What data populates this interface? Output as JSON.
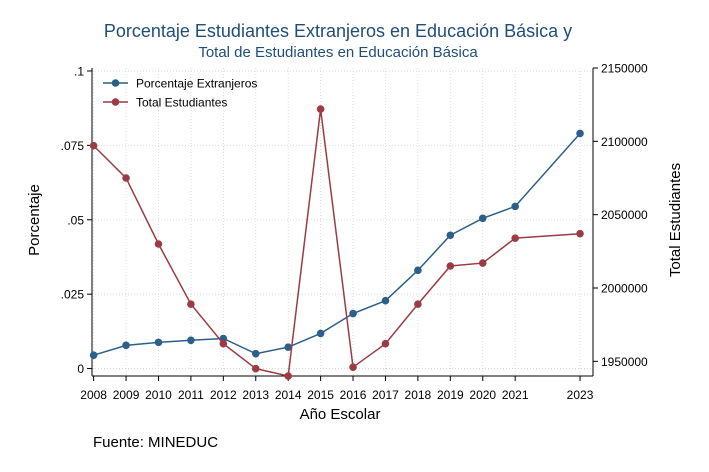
{
  "chart_data": {
    "type": "line",
    "title": "Porcentaje Estudiantes Extranjeros en Educación Básica y",
    "subtitle": "Total de Estudiantes en Educación Básica",
    "xlabel": "Año Escolar",
    "ylabel": "Porcentaje",
    "y2label": "Total Estudiantes",
    "source": "Fuente: MINEDUC",
    "x": [
      2008,
      2009,
      2010,
      2011,
      2012,
      2013,
      2014,
      2015,
      2016,
      2017,
      2018,
      2019,
      2020,
      2021,
      2023
    ],
    "xlim": [
      2007.95,
      2023.4
    ],
    "ylim": [
      -0.0025,
      0.101
    ],
    "y2lim": [
      1940000,
      2150000
    ],
    "yticks": [
      {
        "value": 0,
        "label": "0"
      },
      {
        "value": 0.025,
        "label": ".025"
      },
      {
        "value": 0.05,
        "label": ".05"
      },
      {
        "value": 0.075,
        "label": ".075"
      },
      {
        "value": 0.1,
        "label": ".1"
      }
    ],
    "y2ticks": [
      {
        "value": 1950000,
        "label": "1950000"
      },
      {
        "value": 2000000,
        "label": "2000000"
      },
      {
        "value": 2050000,
        "label": "2050000"
      },
      {
        "value": 2100000,
        "label": "2100000"
      },
      {
        "value": 2150000,
        "label": "2150000"
      }
    ],
    "grid": true,
    "legend_position": "top-left",
    "series": [
      {
        "name": "Porcentaje Extranjeros",
        "axis": "left",
        "color": "#2c5f8a",
        "values": [
          0.0045,
          0.0078,
          0.0088,
          0.0095,
          0.0101,
          0.005,
          0.0072,
          0.0118,
          0.0185,
          0.0228,
          0.033,
          0.0448,
          0.0505,
          0.0545,
          0.079
        ]
      },
      {
        "name": "Total Estudiantes",
        "axis": "right",
        "color": "#9c3b43",
        "values": [
          2097000,
          2075000,
          2030000,
          1989000,
          1962000,
          1945000,
          1940000,
          2122000,
          1946000,
          1962000,
          1989000,
          2015000,
          2017000,
          2034000,
          2037000
        ]
      }
    ]
  }
}
